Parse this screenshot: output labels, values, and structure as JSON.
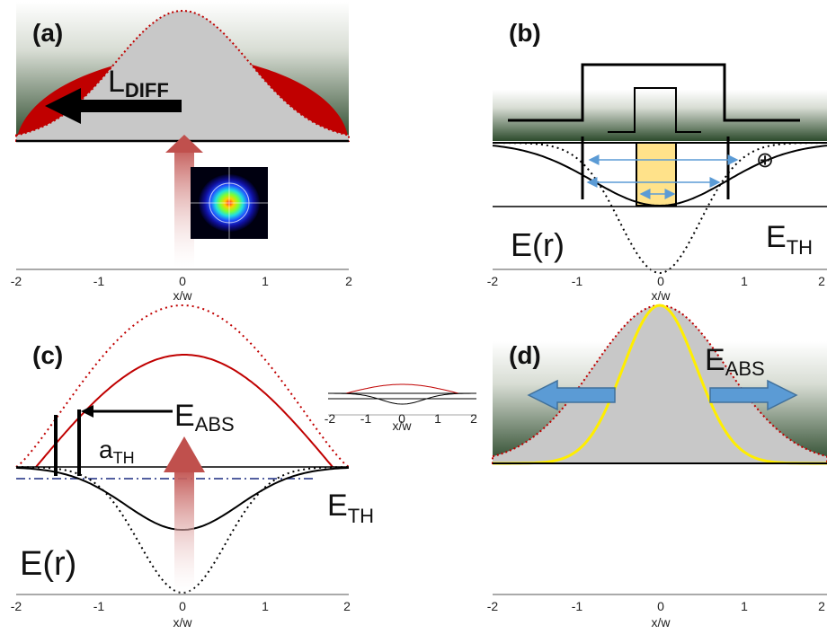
{
  "panels": [
    {
      "id": "a",
      "label": "(a)",
      "annotation_main": "L",
      "annotation_sub": "DIFF",
      "xlabel": "x/w",
      "ticks": [
        "-2",
        "-1",
        "0",
        "1",
        "2"
      ],
      "inset": "beam-profile-heatmap"
    },
    {
      "id": "b",
      "label": "(b)",
      "curve_label": "E(r)",
      "threshold_main": "E",
      "threshold_sub": "TH",
      "symbol": "⊕",
      "xlabel": "x/w",
      "ticks": [
        "-2",
        "-1",
        "0",
        "1",
        "2"
      ]
    },
    {
      "id": "c",
      "label": "(c)",
      "abs_main": "E",
      "abs_sub": "ABS",
      "aTH_main": "a",
      "aTH_sub": "TH",
      "curve_label": "E(r)",
      "threshold_main": "E",
      "threshold_sub": "TH",
      "xlabel": "x/w",
      "ticks": [
        "-2",
        "-1",
        "0",
        "1",
        "2"
      ],
      "inset_ticks": [
        "-2",
        "-1",
        "0",
        "1",
        "2"
      ],
      "inset_xlabel": "x/w"
    },
    {
      "id": "d",
      "label": "(d)",
      "abs_main": "E",
      "abs_sub": "ABS",
      "xlabel": "x/w",
      "ticks": [
        "-2",
        "-1",
        "0",
        "1",
        "2"
      ]
    }
  ],
  "colors": {
    "gaussian_fill": "#c8c8c8",
    "red_region": "#c00000",
    "dotted_red": "#c00000",
    "yellow_curve": "#ffee00",
    "highlight": "#ffe28a",
    "arrow_blue": "#5b9bd5",
    "gradient_dark": "#2c4a2c"
  }
}
